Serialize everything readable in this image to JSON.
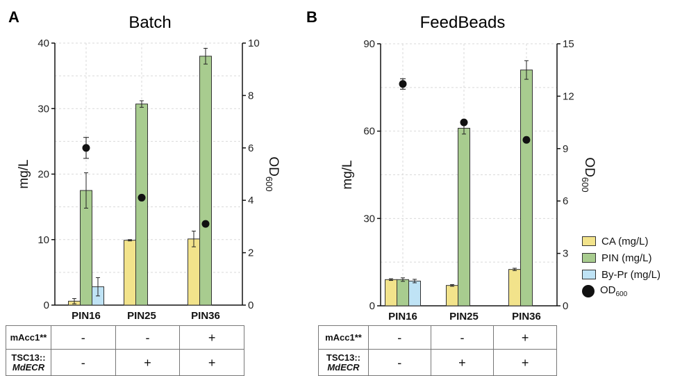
{
  "panels": [
    {
      "letter": "A",
      "title": "Batch"
    },
    {
      "letter": "B",
      "title": "FeedBeads"
    }
  ],
  "colors": {
    "CA": "#f2e38b",
    "PIN": "#a8cc8f",
    "ByPr": "#bfe3f5",
    "OD": "#111111"
  },
  "legend": {
    "items": [
      {
        "label": "CA (mg/L)",
        "color": "#f2e38b"
      },
      {
        "label": "PIN (mg/L)",
        "color": "#a8cc8f"
      },
      {
        "label": "By-Pr (mg/L)",
        "color": "#bfe3f5"
      }
    ],
    "od_label": "OD",
    "od_sub": "600"
  },
  "conditions": {
    "row1_label": "mAcc1**",
    "row2_label_line1": "TSC13::",
    "row2_label_line2": "MdECR",
    "row1": [
      "-",
      "-",
      "+"
    ],
    "row2": [
      "-",
      "+",
      "+"
    ]
  },
  "chart_data": [
    {
      "type": "bar",
      "title": "Batch",
      "categories": [
        "PIN16",
        "PIN25",
        "PIN36"
      ],
      "ylabel": "mg/L",
      "y2label": "OD600",
      "ylim": [
        0,
        40
      ],
      "y2lim": [
        0,
        10
      ],
      "yticks": [
        0,
        10,
        20,
        30,
        40
      ],
      "y2ticks": [
        0,
        2,
        4,
        6,
        8,
        10
      ],
      "grid": true,
      "series": [
        {
          "name": "CA (mg/L)",
          "values": [
            0.6,
            9.9,
            10.1
          ],
          "errors": [
            0.4,
            0.1,
            1.2
          ]
        },
        {
          "name": "PIN (mg/L)",
          "values": [
            17.5,
            30.7,
            38.0
          ],
          "errors": [
            2.7,
            0.5,
            1.2
          ]
        },
        {
          "name": "By-Pr (mg/L)",
          "values": [
            2.8,
            null,
            null
          ],
          "errors": [
            1.4,
            null,
            null
          ]
        }
      ],
      "od": {
        "name": "OD600",
        "values": [
          6.0,
          4.1,
          3.1
        ],
        "errors": [
          0.4,
          0,
          0
        ]
      }
    },
    {
      "type": "bar",
      "title": "FeedBeads",
      "categories": [
        "PIN16",
        "PIN25",
        "PIN36"
      ],
      "ylabel": "mg/L",
      "y2label": "OD600",
      "ylim": [
        0,
        90
      ],
      "y2lim": [
        0,
        15
      ],
      "yticks": [
        0,
        30,
        60,
        90
      ],
      "y2ticks": [
        0,
        3,
        6,
        9,
        12,
        15
      ],
      "grid": true,
      "series": [
        {
          "name": "CA (mg/L)",
          "values": [
            9.0,
            7.0,
            12.5
          ],
          "errors": [
            0.3,
            0.3,
            0.4
          ]
        },
        {
          "name": "PIN (mg/L)",
          "values": [
            9.0,
            61.0,
            81.0
          ],
          "errors": [
            0.6,
            2.0,
            3.2
          ]
        },
        {
          "name": "By-Pr (mg/L)",
          "values": [
            8.5,
            null,
            null
          ],
          "errors": [
            0.6,
            null,
            null
          ]
        }
      ],
      "od": {
        "name": "OD600",
        "values": [
          12.7,
          10.5,
          9.5
        ],
        "errors": [
          0.3,
          0,
          0
        ]
      }
    }
  ]
}
